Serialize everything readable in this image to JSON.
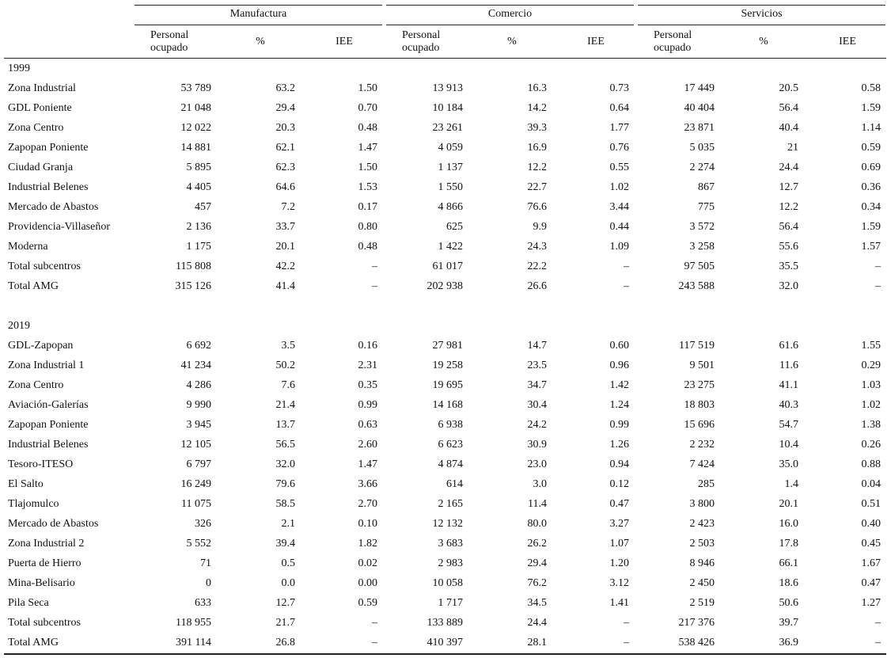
{
  "table": {
    "groups": [
      "Manufactura",
      "Comercio",
      "Servicios"
    ],
    "columns": [
      "Personal ocupado",
      "%",
      "IEE",
      "Personal ocupado",
      "%",
      "IEE",
      "Personal ocupado",
      "%",
      "IEE"
    ],
    "sections": [
      {
        "label": "1999",
        "rows": [
          [
            "Zona Industrial",
            "53 789",
            "63.2",
            "1.50",
            "13 913",
            "16.3",
            "0.73",
            "17 449",
            "20.5",
            "0.58"
          ],
          [
            "GDL Poniente",
            "21 048",
            "29.4",
            "0.70",
            "10 184",
            "14.2",
            "0.64",
            "40 404",
            "56.4",
            "1.59"
          ],
          [
            "Zona Centro",
            "12 022",
            "20.3",
            "0.48",
            "23 261",
            "39.3",
            "1.77",
            "23 871",
            "40.4",
            "1.14"
          ],
          [
            "Zapopan Poniente",
            "14 881",
            "62.1",
            "1.47",
            "4 059",
            "16.9",
            "0.76",
            "5 035",
            "21",
            "0.59"
          ],
          [
            "Ciudad Granja",
            "5 895",
            "62.3",
            "1.50",
            "1 137",
            "12.2",
            "0.55",
            "2 274",
            "24.4",
            "0.69"
          ],
          [
            "Industrial Belenes",
            "4 405",
            "64.6",
            "1.53",
            "1 550",
            "22.7",
            "1.02",
            "867",
            "12.7",
            "0.36"
          ],
          [
            "Mercado de Abastos",
            "457",
            "7.2",
            "0.17",
            "4 866",
            "76.6",
            "3.44",
            "775",
            "12.2",
            "0.34"
          ],
          [
            "Providencia-Villaseñor",
            "2 136",
            "33.7",
            "0.80",
            "625",
            "9.9",
            "0.44",
            "3 572",
            "56.4",
            "1.59"
          ],
          [
            "Moderna",
            "1 175",
            "20.1",
            "0.48",
            "1 422",
            "24.3",
            "1.09",
            "3 258",
            "55.6",
            "1.57"
          ],
          [
            "Total subcentros",
            "115 808",
            "42.2",
            "–",
            "61 017",
            "22.2",
            "–",
            "97 505",
            "35.5",
            "–"
          ],
          [
            "Total AMG",
            "315 126",
            "41.4",
            "–",
            "202 938",
            "26.6",
            "–",
            "243 588",
            "32.0",
            "–"
          ]
        ]
      },
      {
        "label": "2019",
        "rows": [
          [
            "GDL-Zapopan",
            "6 692",
            "3.5",
            "0.16",
            "27 981",
            "14.7",
            "0.60",
            "117 519",
            "61.6",
            "1.55"
          ],
          [
            "Zona Industrial 1",
            "41 234",
            "50.2",
            "2.31",
            "19 258",
            "23.5",
            "0.96",
            "9 501",
            "11.6",
            "0.29"
          ],
          [
            "Zona Centro",
            "4 286",
            "7.6",
            "0.35",
            "19 695",
            "34.7",
            "1.42",
            "23 275",
            "41.1",
            "1.03"
          ],
          [
            "Aviación-Galerías",
            "9 990",
            "21.4",
            "0.99",
            "14 168",
            "30.4",
            "1.24",
            "18 803",
            "40.3",
            "1.02"
          ],
          [
            "Zapopan Poniente",
            "3 945",
            "13.7",
            "0.63",
            "6 938",
            "24.2",
            "0.99",
            "15 696",
            "54.7",
            "1.38"
          ],
          [
            "Industrial Belenes",
            "12 105",
            "56.5",
            "2.60",
            "6 623",
            "30.9",
            "1.26",
            "2 232",
            "10.4",
            "0.26"
          ],
          [
            "Tesoro-ITESO",
            "6 797",
            "32.0",
            "1.47",
            "4 874",
            "23.0",
            "0.94",
            "7 424",
            "35.0",
            "0.88"
          ],
          [
            "El Salto",
            "16 249",
            "79.6",
            "3.66",
            "614",
            "3.0",
            "0.12",
            "285",
            "1.4",
            "0.04"
          ],
          [
            "Tlajomulco",
            "11 075",
            "58.5",
            "2.70",
            "2 165",
            "11.4",
            "0.47",
            "3 800",
            "20.1",
            "0.51"
          ],
          [
            "Mercado de Abastos",
            "326",
            "2.1",
            "0.10",
            "12 132",
            "80.0",
            "3.27",
            "2 423",
            "16.0",
            "0.40"
          ],
          [
            "Zona Industrial 2",
            "5 552",
            "39.4",
            "1.82",
            "3 683",
            "26.2",
            "1.07",
            "2 503",
            "17.8",
            "0.45"
          ],
          [
            "Puerta de Hierro",
            "71",
            "0.5",
            "0.02",
            "2 983",
            "29.4",
            "1.20",
            "8 946",
            "66.1",
            "1.67"
          ],
          [
            "Mina-Belisario",
            "0",
            "0.0",
            "0.00",
            "10 058",
            "76.2",
            "3.12",
            "2 450",
            "18.6",
            "0.47"
          ],
          [
            "Pila Seca",
            "633",
            "12.7",
            "0.59",
            "1 717",
            "34.5",
            "1.41",
            "2 519",
            "50.6",
            "1.27"
          ],
          [
            "Total subcentros",
            "118 955",
            "21.7",
            "–",
            "133 889",
            "24.4",
            "–",
            "217 376",
            "39.7",
            "–"
          ],
          [
            "Total AMG",
            "391 114",
            "26.8",
            "–",
            "410 397",
            "28.1",
            "–",
            "538 426",
            "36.9",
            "–"
          ]
        ]
      }
    ]
  }
}
